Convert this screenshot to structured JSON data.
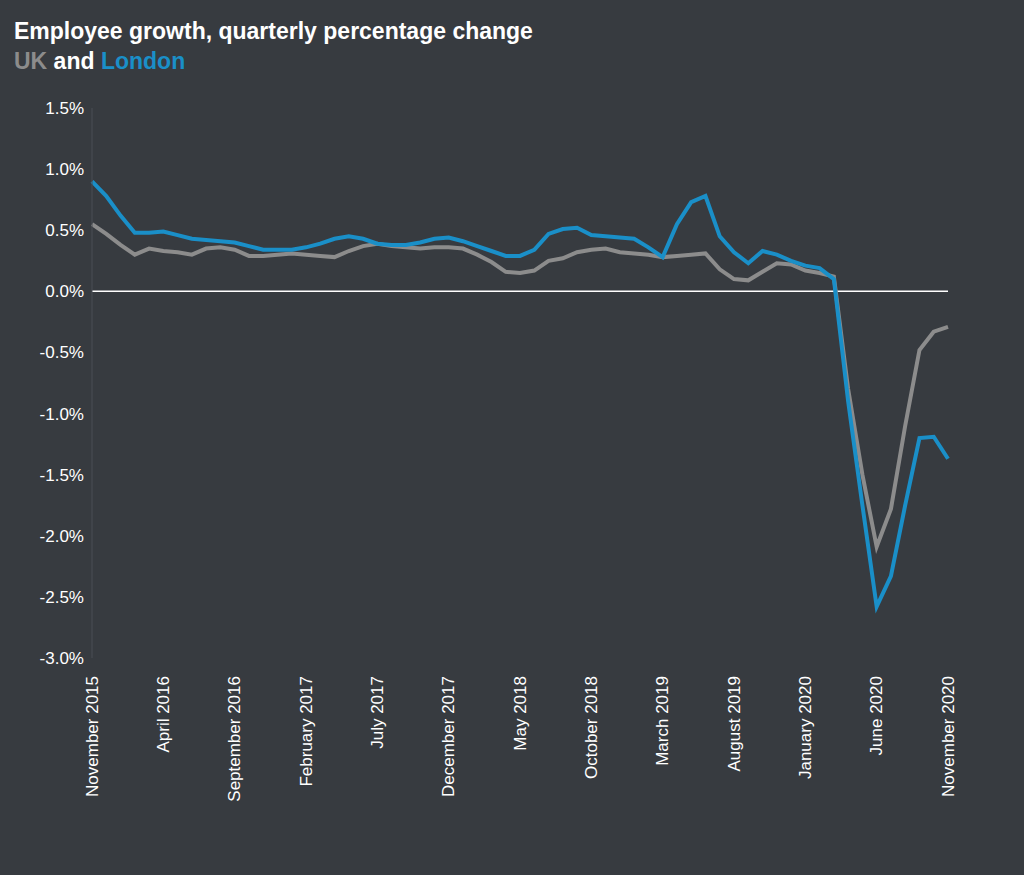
{
  "chart_data": {
    "type": "line",
    "title": "Employee growth, quarterly percentage change",
    "subtitle": "UK and London",
    "categories": [
      "November 2015",
      null,
      null,
      null,
      null,
      "April 2016",
      null,
      null,
      null,
      null,
      "September 2016",
      null,
      null,
      null,
      null,
      "February 2017",
      null,
      null,
      null,
      null,
      "July 2017",
      null,
      null,
      null,
      null,
      "December 2017",
      null,
      null,
      null,
      null,
      "May 2018",
      null,
      null,
      null,
      null,
      "October 2018",
      null,
      null,
      null,
      null,
      "March 2019",
      null,
      null,
      null,
      null,
      "August 2019",
      null,
      null,
      null,
      null,
      "January 2020",
      null,
      null,
      null,
      null,
      "June 2020",
      null,
      null,
      null,
      null,
      "November 2020"
    ],
    "series": [
      {
        "name": "UK",
        "color": "#8c8c8c",
        "values": [
          0.55,
          0.47,
          0.38,
          0.3,
          0.35,
          0.33,
          0.32,
          0.3,
          0.35,
          0.36,
          0.34,
          0.29,
          0.29,
          0.3,
          0.31,
          0.3,
          0.29,
          0.28,
          0.33,
          0.37,
          0.39,
          0.37,
          0.36,
          0.35,
          0.36,
          0.36,
          0.35,
          0.3,
          0.24,
          0.16,
          0.15,
          0.17,
          0.25,
          0.27,
          0.32,
          0.34,
          0.35,
          0.32,
          0.31,
          0.3,
          0.28,
          0.29,
          0.3,
          0.31,
          0.18,
          0.1,
          0.09,
          0.16,
          0.23,
          0.22,
          0.17,
          0.15,
          0.12,
          -0.8,
          -1.5,
          -2.09,
          -1.78,
          -1.1,
          -0.48,
          -0.33,
          -0.29
        ]
      },
      {
        "name": "London",
        "color": "#1a8fc8",
        "values": [
          0.9,
          0.78,
          0.62,
          0.48,
          0.48,
          0.49,
          0.46,
          0.43,
          0.42,
          0.41,
          0.4,
          0.37,
          0.34,
          0.34,
          0.34,
          0.36,
          0.39,
          0.43,
          0.45,
          0.43,
          0.39,
          0.38,
          0.38,
          0.4,
          0.43,
          0.44,
          0.41,
          0.37,
          0.33,
          0.29,
          0.29,
          0.34,
          0.47,
          0.51,
          0.52,
          0.46,
          0.45,
          0.44,
          0.43,
          0.36,
          0.28,
          0.55,
          0.73,
          0.78,
          0.45,
          0.32,
          0.23,
          0.33,
          0.3,
          0.25,
          0.21,
          0.19,
          0.1,
          -0.9,
          -1.75,
          -2.58,
          -2.33,
          -1.75,
          -1.2,
          -1.19,
          -1.37
        ]
      }
    ],
    "ylim": [
      -3.0,
      1.5
    ],
    "yticks": [
      {
        "value": -3.0,
        "label": "-3.0%"
      },
      {
        "value": -2.5,
        "label": "-2.5%"
      },
      {
        "value": -2.0,
        "label": "-2.0%"
      },
      {
        "value": -1.5,
        "label": "-1.5%"
      },
      {
        "value": -1.0,
        "label": "-1.0%"
      },
      {
        "value": -0.5,
        "label": "-0.5%"
      },
      {
        "value": 0,
        "label": "0.0%"
      },
      {
        "value": 0.5,
        "label": "0.5%"
      },
      {
        "value": 1.0,
        "label": "1.0%"
      },
      {
        "value": 1.5,
        "label": "1.5%"
      }
    ],
    "grid": false
  }
}
